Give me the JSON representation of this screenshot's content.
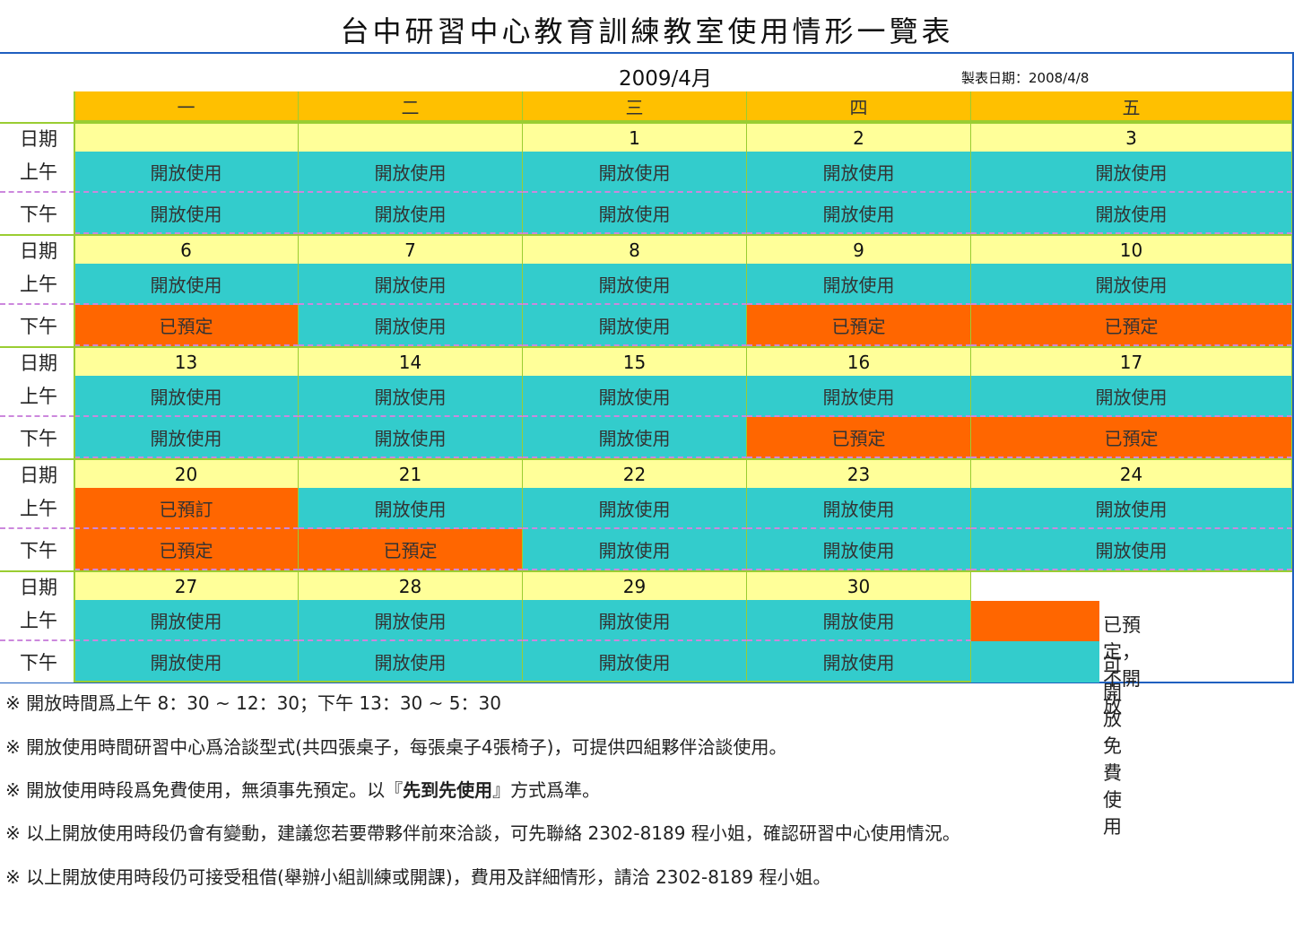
{
  "title": "台中研習中心教育訓練教室使用情形一覽表",
  "month": "2009/4月",
  "made_date": "製表日期：2008/4/8",
  "weekdays": [
    "一",
    "二",
    "三",
    "四",
    "五"
  ],
  "row_labels": {
    "date": "日期",
    "am": "上午",
    "pm": "下午"
  },
  "weeks": [
    {
      "dates": [
        "",
        "",
        "1",
        "2",
        "3"
      ],
      "am": [
        "開放使用",
        "開放使用",
        "開放使用",
        "開放使用",
        "開放使用"
      ],
      "pm": [
        "開放使用",
        "開放使用",
        "開放使用",
        "開放使用",
        "開放使用"
      ]
    },
    {
      "dates": [
        "6",
        "7",
        "8",
        "9",
        "10"
      ],
      "am": [
        "開放使用",
        "開放使用",
        "開放使用",
        "開放使用",
        "開放使用"
      ],
      "pm": [
        "已預定",
        "開放使用",
        "開放使用",
        "已預定",
        "已預定"
      ]
    },
    {
      "dates": [
        "13",
        "14",
        "15",
        "16",
        "17"
      ],
      "am": [
        "開放使用",
        "開放使用",
        "開放使用",
        "開放使用",
        "開放使用"
      ],
      "pm": [
        "開放使用",
        "開放使用",
        "開放使用",
        "已預定",
        "已預定"
      ]
    },
    {
      "dates": [
        "20",
        "21",
        "22",
        "23",
        "24"
      ],
      "am": [
        "已預訂",
        "開放使用",
        "開放使用",
        "開放使用",
        "開放使用"
      ],
      "pm": [
        "已預定",
        "已預定",
        "開放使用",
        "開放使用",
        "開放使用"
      ]
    },
    {
      "dates": [
        "27",
        "28",
        "29",
        "30"
      ],
      "am": [
        "開放使用",
        "開放使用",
        "開放使用",
        "開放使用"
      ],
      "pm": [
        "開放使用",
        "開放使用",
        "開放使用",
        "開放使用"
      ]
    }
  ],
  "legend": {
    "booked": "已預定，不開放",
    "open": "可開放免費使用"
  },
  "colors": {
    "open": "#33cccc",
    "booked": "#ff6600",
    "date": "#ffff99",
    "header": "#ffc000"
  },
  "notes": [
    {
      "pre": "※ 開放時間爲上午 8：30 ~ 12：30；下午 13：30 ~ 5：30",
      "bold": "",
      "post": ""
    },
    {
      "pre": "※ 開放使用時間研習中心爲洽談型式(共四張桌子，每張桌子4張椅子)，可提供四組夥伴洽談使用。",
      "bold": "",
      "post": ""
    },
    {
      "pre": "※ 開放使用時段爲免費使用，無須事先預定。以『",
      "bold": "先到先使用",
      "post": "』方式爲準。"
    },
    {
      "pre": "※ 以上開放使用時段仍會有變動，建議您若要帶夥伴前來洽談，可先聯絡 2302-8189 程小姐，確認研習中心使用情況。",
      "bold": "",
      "post": ""
    },
    {
      "pre": "※ 以上開放使用時段仍可接受租借(舉辦小組訓練或開課)，費用及詳細情形，請洽 2302-8189 程小姐。",
      "bold": "",
      "post": ""
    }
  ]
}
